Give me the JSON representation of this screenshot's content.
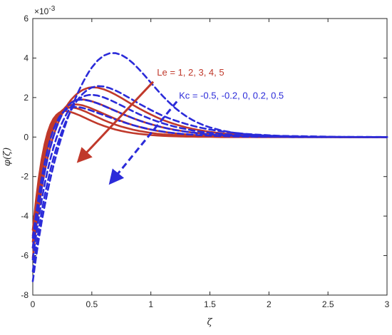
{
  "chart_data": {
    "type": "line",
    "xlabel": "ζ",
    "ylabel": "φ(ζ)",
    "exponent_label": "×10",
    "exponent_power": "-3",
    "xlim": [
      0,
      3
    ],
    "ylim": [
      -8,
      6
    ],
    "xticks": [
      0,
      0.5,
      1,
      1.5,
      2,
      2.5,
      3
    ],
    "xtick_labels": [
      "0",
      "0.5",
      "1",
      "1.5",
      "2",
      "2.5",
      "3"
    ],
    "yticks": [
      -8,
      -6,
      -4,
      -2,
      0,
      2,
      4,
      6
    ],
    "ytick_labels": [
      "-8",
      "-6",
      "-4",
      "-2",
      "0",
      "2",
      "4",
      "6"
    ],
    "grid": false,
    "colors": {
      "le": "#c0392b",
      "kc": "#2b2bd9",
      "axis": "#262626"
    },
    "x": [
      0,
      0.025,
      0.05,
      0.075,
      0.1,
      0.125,
      0.15,
      0.175,
      0.2,
      0.225,
      0.25,
      0.275,
      0.3,
      0.325,
      0.35,
      0.375,
      0.4,
      0.425,
      0.45,
      0.475,
      0.5,
      0.55,
      0.6,
      0.65,
      0.7,
      0.75,
      0.8,
      0.85,
      0.9,
      0.95,
      1,
      1.05,
      1.1,
      1.15,
      1.2,
      1.25,
      1.3,
      1.35,
      1.4,
      1.45,
      1.5,
      1.6,
      1.7,
      1.8,
      1.9,
      2,
      2.1,
      2.2,
      2.4,
      2.6,
      2.8,
      3
    ],
    "series": [
      {
        "group": "le",
        "style": "solid",
        "values": [
          -4.7,
          -3.29,
          -2.1,
          -1.13,
          -0.36,
          0.22,
          0.64,
          0.93,
          1.12,
          1.24,
          1.3,
          1.32,
          1.3,
          1.26,
          1.21,
          1.15,
          1.09,
          1.02,
          0.95,
          0.88,
          0.81,
          0.68,
          0.57,
          0.47,
          0.38,
          0.31,
          0.25,
          0.2,
          0.16,
          0.13,
          0.1,
          0.08,
          0.06,
          0.05,
          0.04,
          0.03,
          0.02,
          0.02,
          0.01,
          0.01,
          0.01,
          0.0,
          0.0,
          0.0,
          0.0,
          0.0,
          0.0,
          0.0,
          0.0,
          0.0,
          0.0,
          0.0
        ]
      },
      {
        "group": "le",
        "style": "solid",
        "values": [
          -5.0,
          -3.6,
          -2.42,
          -1.45,
          -0.66,
          -0.04,
          0.43,
          0.78,
          1.04,
          1.22,
          1.35,
          1.43,
          1.48,
          1.49,
          1.48,
          1.45,
          1.4,
          1.34,
          1.28,
          1.21,
          1.14,
          1.0,
          0.86,
          0.74,
          0.63,
          0.53,
          0.45,
          0.37,
          0.31,
          0.26,
          0.21,
          0.17,
          0.14,
          0.12,
          0.1,
          0.08,
          0.06,
          0.05,
          0.04,
          0.03,
          0.03,
          0.02,
          0.01,
          0.01,
          0.0,
          0.0,
          0.0,
          0.0,
          0.0,
          0.0,
          0.0,
          0.0
        ]
      },
      {
        "group": "le",
        "style": "solid",
        "values": [
          -5.3,
          -3.92,
          -2.75,
          -1.77,
          -0.97,
          -0.31,
          0.21,
          0.61,
          0.93,
          1.17,
          1.35,
          1.48,
          1.57,
          1.62,
          1.65,
          1.65,
          1.63,
          1.6,
          1.55,
          1.5,
          1.44,
          1.31,
          1.18,
          1.05,
          0.92,
          0.81,
          0.7,
          0.6,
          0.52,
          0.44,
          0.38,
          0.32,
          0.27,
          0.23,
          0.19,
          0.16,
          0.14,
          0.11,
          0.09,
          0.08,
          0.07,
          0.05,
          0.03,
          0.02,
          0.01,
          0.01,
          0.01,
          0.0,
          0.0,
          0.0,
          0.0,
          0.0
        ]
      },
      {
        "group": "le",
        "style": "solid",
        "values": [
          -5.6,
          -4.23,
          -3.06,
          -2.08,
          -1.27,
          -0.6,
          -0.04,
          0.41,
          0.78,
          1.08,
          1.32,
          1.5,
          1.65,
          1.76,
          1.84,
          1.88,
          1.9,
          1.9,
          1.88,
          1.85,
          1.81,
          1.71,
          1.59,
          1.46,
          1.33,
          1.2,
          1.07,
          0.95,
          0.84,
          0.74,
          0.65,
          0.57,
          0.49,
          0.43,
          0.37,
          0.32,
          0.27,
          0.23,
          0.2,
          0.17,
          0.14,
          0.1,
          0.07,
          0.05,
          0.04,
          0.03,
          0.02,
          0.01,
          0.01,
          0.0,
          0.0,
          0.0
        ]
      },
      {
        "group": "le",
        "style": "solid",
        "values": [
          -6.1,
          -4.75,
          -3.6,
          -2.61,
          -1.77,
          -1.06,
          -0.45,
          0.06,
          0.5,
          0.87,
          1.19,
          1.46,
          1.69,
          1.89,
          2.05,
          2.19,
          2.3,
          2.39,
          2.45,
          2.5,
          2.52,
          2.5,
          2.42,
          2.3,
          2.15,
          1.98,
          1.8,
          1.62,
          1.45,
          1.29,
          1.14,
          1.0,
          0.87,
          0.76,
          0.66,
          0.57,
          0.49,
          0.42,
          0.36,
          0.31,
          0.26,
          0.19,
          0.14,
          0.1,
          0.07,
          0.05,
          0.03,
          0.02,
          0.01,
          0.0,
          0.0,
          0.0
        ]
      },
      {
        "group": "kc",
        "style": "dashed",
        "values": [
          -5.1,
          -4.0,
          -3.0,
          -2.1,
          -1.32,
          -0.65,
          -0.08,
          0.38,
          0.74,
          1.02,
          1.22,
          1.36,
          1.45,
          1.5,
          1.52,
          1.52,
          1.5,
          1.47,
          1.43,
          1.38,
          1.33,
          1.22,
          1.11,
          1.0,
          0.89,
          0.79,
          0.69,
          0.6,
          0.52,
          0.45,
          0.38,
          0.33,
          0.28,
          0.23,
          0.2,
          0.17,
          0.14,
          0.12,
          0.1,
          0.08,
          0.07,
          0.05,
          0.03,
          0.02,
          0.01,
          0.01,
          0.01,
          0.0,
          0.0,
          0.0,
          0.0,
          0.0
        ]
      },
      {
        "group": "kc",
        "style": "dashed",
        "values": [
          -5.6,
          -4.5,
          -3.5,
          -2.6,
          -1.8,
          -1.1,
          -0.5,
          0.02,
          0.47,
          0.85,
          1.16,
          1.41,
          1.6,
          1.73,
          1.82,
          1.87,
          1.89,
          1.89,
          1.87,
          1.84,
          1.8,
          1.7,
          1.58,
          1.45,
          1.32,
          1.19,
          1.07,
          0.95,
          0.84,
          0.74,
          0.65,
          0.56,
          0.49,
          0.42,
          0.36,
          0.31,
          0.27,
          0.23,
          0.19,
          0.16,
          0.14,
          0.1,
          0.07,
          0.05,
          0.03,
          0.02,
          0.01,
          0.01,
          0.0,
          0.0,
          0.0,
          0.0
        ]
      },
      {
        "group": "kc",
        "style": "dashed",
        "values": [
          -6.2,
          -5.1,
          -4.1,
          -3.2,
          -2.4,
          -1.7,
          -1.08,
          -0.53,
          -0.05,
          0.37,
          0.74,
          1.05,
          1.32,
          1.54,
          1.72,
          1.86,
          1.97,
          2.05,
          2.1,
          2.13,
          2.14,
          2.1,
          2.01,
          1.89,
          1.75,
          1.6,
          1.45,
          1.3,
          1.16,
          1.03,
          0.91,
          0.8,
          0.7,
          0.61,
          0.53,
          0.46,
          0.4,
          0.34,
          0.29,
          0.25,
          0.22,
          0.16,
          0.11,
          0.08,
          0.06,
          0.04,
          0.03,
          0.02,
          0.01,
          0.0,
          0.0,
          0.0
        ]
      },
      {
        "group": "kc",
        "style": "dashed",
        "values": [
          -6.8,
          -5.7,
          -4.7,
          -3.8,
          -3.0,
          -2.3,
          -1.65,
          -1.07,
          -0.55,
          -0.08,
          0.34,
          0.72,
          1.06,
          1.36,
          1.62,
          1.85,
          2.04,
          2.2,
          2.33,
          2.43,
          2.51,
          2.58,
          2.56,
          2.48,
          2.36,
          2.21,
          2.04,
          1.87,
          1.69,
          1.53,
          1.37,
          1.22,
          1.08,
          0.96,
          0.85,
          0.75,
          0.66,
          0.58,
          0.5,
          0.44,
          0.38,
          0.29,
          0.22,
          0.16,
          0.12,
          0.09,
          0.06,
          0.05,
          0.03,
          0.01,
          0.01,
          0.0
        ]
      },
      {
        "group": "kc",
        "style": "dashed",
        "values": [
          -7.3,
          -6.2,
          -5.2,
          -4.3,
          -3.5,
          -2.76,
          -2.08,
          -1.46,
          -0.89,
          -0.36,
          0.13,
          0.59,
          1.02,
          1.42,
          1.8,
          2.15,
          2.47,
          2.77,
          3.05,
          3.3,
          3.52,
          3.88,
          4.12,
          4.24,
          4.25,
          4.16,
          3.98,
          3.73,
          3.43,
          3.1,
          2.75,
          2.41,
          2.08,
          1.78,
          1.5,
          1.26,
          1.05,
          0.87,
          0.72,
          0.59,
          0.49,
          0.33,
          0.22,
          0.15,
          0.1,
          0.07,
          0.05,
          0.03,
          0.01,
          0.01,
          0.0,
          0.0
        ]
      }
    ],
    "annotations": {
      "le": {
        "text": "Le = 1, 2, 3, 4, 5",
        "arrow_from": [
          1.02,
          2.8
        ],
        "arrow_to": [
          0.39,
          -1.2
        ],
        "label_at": [
          1.04,
          2.75
        ]
      },
      "kc": {
        "text": "Kc = -0.5, -0.2, 0, 0.2, 0.5",
        "arrow_from": [
          1.22,
          1.8
        ],
        "arrow_to": [
          0.66,
          -2.3
        ],
        "label_at": [
          1.22,
          1.8
        ]
      }
    }
  }
}
